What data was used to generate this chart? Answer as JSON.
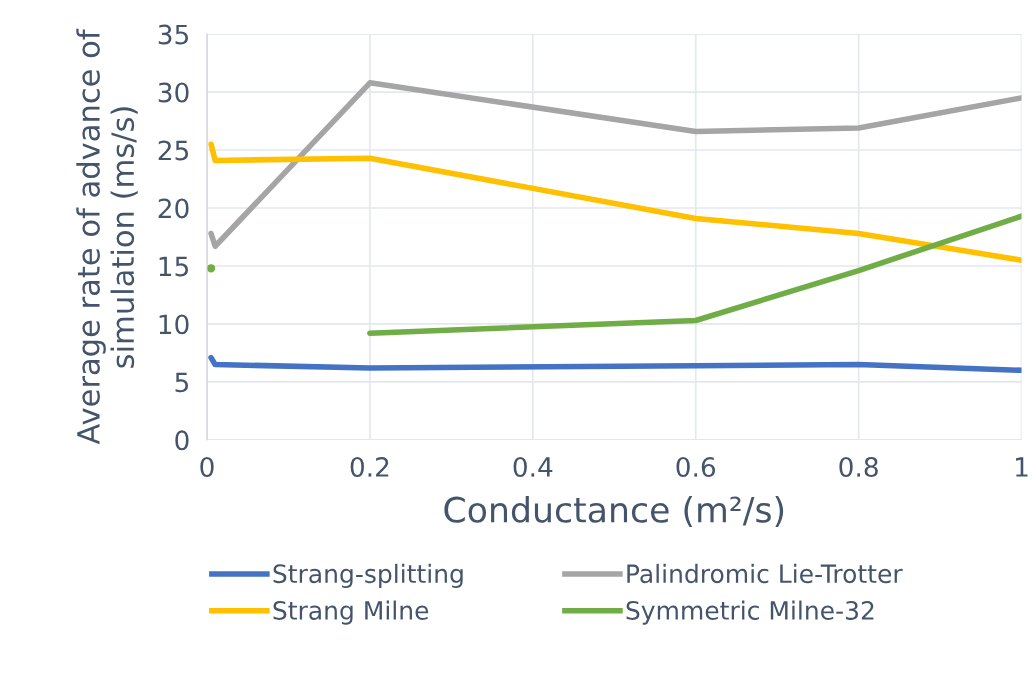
{
  "chart_data": {
    "type": "line",
    "xlabel": "Conductance (m²/s)",
    "ylabel": "Average rate of advance of simulation (ms/s)",
    "x": [
      0.005,
      0.01,
      0.2,
      0.6,
      0.8,
      1
    ],
    "series": [
      {
        "name": "Strang-splitting",
        "color": "#4472c4",
        "values": [
          7.1,
          6.5,
          6.2,
          6.4,
          6.5,
          6.0
        ]
      },
      {
        "name": "Palindromic Lie-Trotter",
        "color": "#a5a5a5",
        "values": [
          17.8,
          16.7,
          30.8,
          26.6,
          26.9,
          29.5
        ]
      },
      {
        "name": "Strang Milne",
        "color": "#ffc000",
        "values": [
          25.5,
          24.1,
          24.3,
          19.1,
          17.8,
          15.5
        ]
      },
      {
        "name": "Symmetric Milne-32",
        "color": "#70ad47",
        "values": [
          14.8,
          null,
          9.2,
          10.3,
          14.6,
          19.3
        ]
      }
    ],
    "xlim": [
      0,
      1
    ],
    "xticks": [
      0,
      0.2,
      0.4,
      0.6,
      0.8,
      1
    ],
    "ylim": [
      0,
      35
    ],
    "yticks": [
      0,
      5,
      10,
      15,
      20,
      25,
      30,
      35
    ],
    "grid": true,
    "legend": "bottom",
    "marker": "none",
    "line_style": "solid"
  }
}
